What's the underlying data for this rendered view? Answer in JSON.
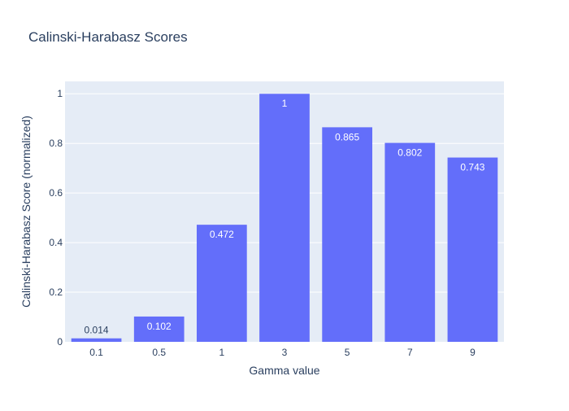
{
  "chart_data": {
    "type": "bar",
    "title": "Calinski-Harabasz Scores",
    "xlabel": "Gamma value",
    "ylabel": "Calinski-Harabasz Score (normalized)",
    "categories": [
      "0.1",
      "0.5",
      "1",
      "3",
      "5",
      "7",
      "9"
    ],
    "values": [
      0.014,
      0.102,
      0.472,
      1,
      0.865,
      0.802,
      0.743
    ],
    "data_labels": [
      "0.014",
      "0.102",
      "0.472",
      "1",
      "0.865",
      "0.802",
      "0.743"
    ],
    "yticks": [
      0,
      0.2,
      0.4,
      0.6,
      0.8,
      1
    ],
    "ytick_labels": [
      "0",
      "0.2",
      "0.4",
      "0.6",
      "0.8",
      "1"
    ],
    "ylim": [
      0,
      1.05
    ],
    "grid": true,
    "colors": {
      "bar": "#636efa",
      "plot_bg": "#e5ecf6",
      "grid": "#ffffff",
      "text": "#2a3f5f",
      "label_inside": "#ffffff"
    }
  }
}
